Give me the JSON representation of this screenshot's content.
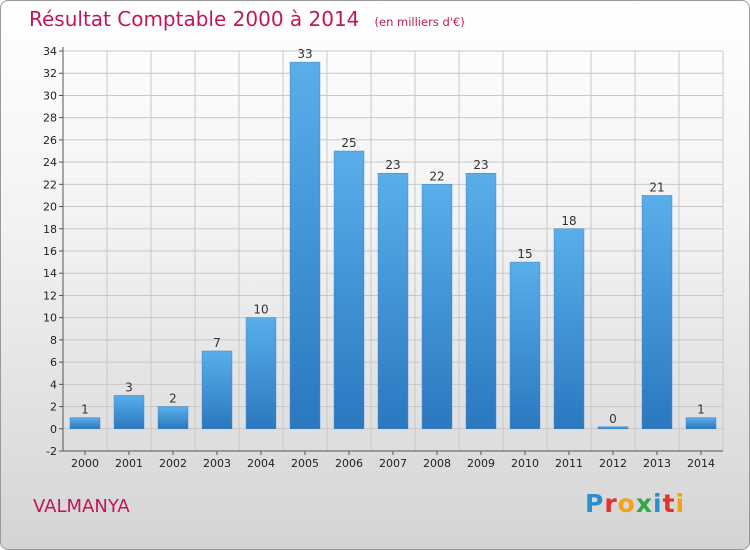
{
  "header": {
    "title": "Résultat Comptable 2000 à 2014",
    "subtitle": "(en milliers d'€)"
  },
  "footer": {
    "commune": "VALMANYA",
    "brand_letters": [
      {
        "char": "P",
        "color": "#2a8fd0"
      },
      {
        "char": "r",
        "color": "#e2322b"
      },
      {
        "char": "o",
        "color": "#f4a20f"
      },
      {
        "char": "x",
        "color": "#34a844"
      },
      {
        "char": "i",
        "color": "#2a8fd0"
      },
      {
        "char": "t",
        "color": "#e2322b"
      },
      {
        "char": "i",
        "color": "#f4a20f"
      }
    ]
  },
  "chart_data": {
    "type": "bar",
    "categories": [
      "2000",
      "2001",
      "2002",
      "2003",
      "2004",
      "2005",
      "2006",
      "2007",
      "2008",
      "2009",
      "2010",
      "2011",
      "2012",
      "2013",
      "2014"
    ],
    "values": [
      1,
      3,
      2,
      7,
      10,
      33,
      25,
      23,
      22,
      23,
      15,
      18,
      0,
      21,
      1
    ],
    "ylim": [
      -2,
      34
    ],
    "yticks": [
      -2,
      0,
      2,
      4,
      6,
      8,
      10,
      12,
      14,
      16,
      18,
      20,
      22,
      24,
      26,
      28,
      30,
      32,
      34
    ],
    "grid": true,
    "bar_color": "#4da0e0",
    "bar_color_dark": "#2a78bf"
  }
}
